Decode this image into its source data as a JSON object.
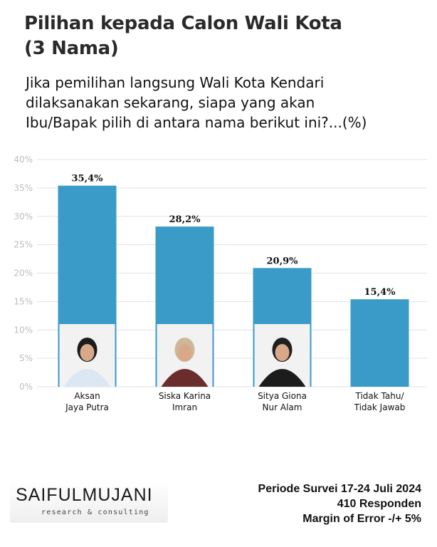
{
  "header": {
    "title_line1": "Pilihan kepada Calon Wali Kota",
    "title_line2": "(3 Nama)",
    "question_line1": "Jika pemilihan langsung Wali Kota Kendari",
    "question_line2": "dilaksanakan sekarang, siapa yang akan",
    "question_line3": "Ibu/Bapak pilih di antara nama berikut ini?...(%)"
  },
  "chart_data": {
    "type": "bar",
    "title": "Pilihan kepada Calon Wali Kota (3 Nama)",
    "categories": [
      [
        "Aksan",
        "Jaya Putra"
      ],
      [
        "Siska Karina",
        "Imran"
      ],
      [
        "Sitya Giona",
        "Nur Alam"
      ],
      [
        "Tidak Tahu/",
        "Tidak Jawab"
      ]
    ],
    "values": [
      35.4,
      28.2,
      20.9,
      15.4
    ],
    "value_labels": [
      "35,4%",
      "28,2%",
      "20,9%",
      "15,4%"
    ],
    "ylim": [
      0,
      40
    ],
    "yticks": [
      "0%",
      "5%",
      "10%",
      "15%",
      "20%",
      "25%",
      "30%",
      "35%",
      "40%"
    ],
    "grid": true,
    "bar_color": "#3a9bc8",
    "grid_color": "#e3e3e3",
    "candidate_photos": [
      true,
      true,
      true,
      false
    ]
  },
  "footer": {
    "logo_main": "SAIFULMUJANI",
    "logo_sub": "research & consulting",
    "period": "Periode Survei 17-24 Juli 2024",
    "respondents": "410 Responden",
    "margin": "Margin of Error -/+ 5%"
  }
}
